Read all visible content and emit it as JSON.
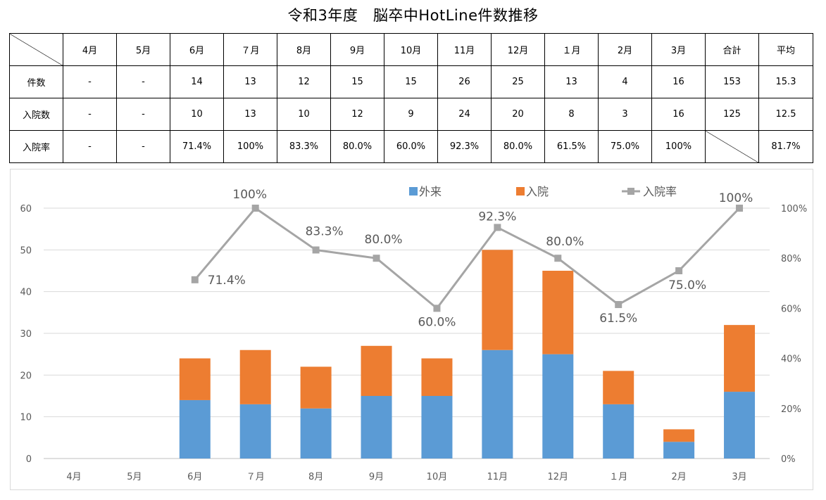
{
  "title": "令和3年度　脳卒中HotLine件数推移",
  "table": {
    "headers": [
      "4月",
      "5月",
      "6月",
      "７月",
      "8月",
      "9月",
      "10月",
      "11月",
      "12月",
      "１月",
      "2月",
      "3月",
      "合計",
      "平均"
    ],
    "rows": [
      {
        "label": "件数",
        "cells": [
          "-",
          "-",
          "14",
          "13",
          "12",
          "15",
          "15",
          "26",
          "25",
          "13",
          "4",
          "16",
          "153",
          "15.3"
        ]
      },
      {
        "label": "入院数",
        "cells": [
          "-",
          "-",
          "10",
          "13",
          "10",
          "12",
          "9",
          "24",
          "20",
          "8",
          "3",
          "16",
          "125",
          "12.5"
        ]
      },
      {
        "label": "入院率",
        "cells": [
          "-",
          "-",
          "71.4%",
          "100%",
          "83.3%",
          "80.0%",
          "60.0%",
          "92.3%",
          "80.0%",
          "61.5%",
          "75.0%",
          "100%",
          "",
          "81.7%"
        ]
      }
    ]
  },
  "chart_data": {
    "type": "bar",
    "stacked": true,
    "categories": [
      "4月",
      "5月",
      "6月",
      "７月",
      "8月",
      "9月",
      "10月",
      "11月",
      "12月",
      "１月",
      "2月",
      "3月"
    ],
    "series": [
      {
        "name": "外来",
        "color": "#5b9bd5",
        "values": [
          0,
          0,
          14,
          13,
          12,
          15,
          15,
          26,
          25,
          13,
          4,
          16
        ]
      },
      {
        "name": "入院",
        "color": "#ed7d31",
        "values": [
          0,
          0,
          10,
          13,
          10,
          12,
          9,
          24,
          20,
          8,
          3,
          16
        ]
      }
    ],
    "line_series": {
      "name": "入院率",
      "color": "#a5a5a5",
      "axis": "right",
      "values": [
        null,
        null,
        71.4,
        100,
        83.3,
        80.0,
        60.0,
        92.3,
        80.0,
        61.5,
        75.0,
        100
      ],
      "labels": [
        "",
        "",
        "71.4%",
        "100%",
        "83.3%",
        "80.0%",
        "60.0%",
        "92.3%",
        "80.0%",
        "61.5%",
        "75.0%",
        "100%"
      ]
    },
    "y_left": {
      "min": 0,
      "max": 60,
      "ticks": [
        "0",
        "10",
        "20",
        "30",
        "40",
        "50",
        "60"
      ]
    },
    "y_right": {
      "min": 0,
      "max": 100,
      "ticks": [
        "0%",
        "20%",
        "40%",
        "60%",
        "80%",
        "100%"
      ]
    },
    "grid": true,
    "legend_position": "top-right"
  }
}
